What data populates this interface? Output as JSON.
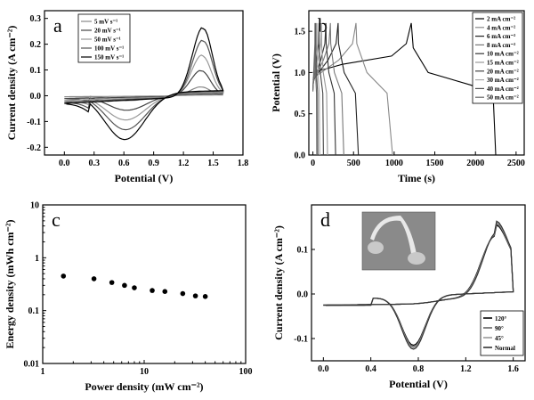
{
  "chart_data": [
    {
      "panel": "a",
      "type": "line",
      "xlabel": "Potential (V)",
      "ylabel": "Current density (A cm⁻²)",
      "xlim": [
        -0.2,
        1.8
      ],
      "ylim": [
        -0.23,
        0.33
      ],
      "xticks": [
        "0.0",
        "0.3",
        "0.6",
        "0.9",
        "1.2",
        "1.5",
        "1.8"
      ],
      "yticks": [
        "-0.2",
        "-0.1",
        "0.0",
        "0.1",
        "0.2",
        "0.3"
      ],
      "legend": [
        "5 mV s⁻¹",
        "20 mV s⁻¹",
        "50 mV s⁻¹",
        "100 mV s⁻¹",
        "150 mV s⁻¹"
      ],
      "series": [
        {
          "name": "5 mV s⁻¹",
          "color": "#888888",
          "anodic_peak": [
            1.38,
            0.035
          ],
          "cathodic_peak": [
            0.65,
            -0.02
          ]
        },
        {
          "name": "20 mV s⁻¹",
          "color": "#444444",
          "anodic_peak": [
            1.38,
            0.1
          ],
          "cathodic_peak": [
            0.63,
            -0.06
          ]
        },
        {
          "name": "50 mV s⁻¹",
          "color": "#999999",
          "anodic_peak": [
            1.39,
            0.16
          ],
          "cathodic_peak": [
            0.62,
            -0.1
          ]
        },
        {
          "name": "100 mV s⁻¹",
          "color": "#555555",
          "anodic_peak": [
            1.4,
            0.22
          ],
          "cathodic_peak": [
            0.62,
            -0.14
          ]
        },
        {
          "name": "150 mV s⁻¹",
          "color": "#000000",
          "anodic_peak": [
            1.4,
            0.27
          ],
          "cathodic_peak": [
            0.61,
            -0.18
          ]
        }
      ]
    },
    {
      "panel": "b",
      "type": "line",
      "xlabel": "Time (s)",
      "ylabel": "Potential (V)",
      "xlim": [
        -50,
        2600
      ],
      "ylim": [
        0,
        1.75
      ],
      "xticks": [
        "0",
        "500",
        "1000",
        "1500",
        "2000",
        "2500"
      ],
      "yticks": [
        "0.0",
        "0.5",
        "1.0",
        "1.5"
      ],
      "legend": [
        "2 mA cm⁻²",
        "4 mA cm⁻²",
        "6 mA cm⁻²",
        "8 mA cm⁻²",
        "10 mA cm⁻²",
        "15 mA cm⁻²",
        "20 mA cm⁻²",
        "30 mA cm⁻²",
        "40 mA cm⁻²",
        "50 mA cm⁻²"
      ],
      "series": [
        {
          "name": "2 mA cm⁻²",
          "color": "#000000",
          "t_charge": 1210,
          "t_end": 2250
        },
        {
          "name": "4 mA cm⁻²",
          "color": "#888888",
          "t_charge": 530,
          "t_end": 980
        },
        {
          "name": "6 mA cm⁻²",
          "color": "#222222",
          "t_charge": 310,
          "t_end": 560
        },
        {
          "name": "8 mA cm⁻²",
          "color": "#777777",
          "t_charge": 215,
          "t_end": 380
        },
        {
          "name": "10 mA cm⁻²",
          "color": "#333333",
          "t_charge": 160,
          "t_end": 280
        },
        {
          "name": "15 mA cm⁻²",
          "color": "#999999",
          "t_charge": 105,
          "t_end": 180
        },
        {
          "name": "20 mA cm⁻²",
          "color": "#444444",
          "t_charge": 75,
          "t_end": 130
        },
        {
          "name": "30 mA cm⁻²",
          "color": "#aaaaaa",
          "t_charge": 50,
          "t_end": 85
        },
        {
          "name": "40 mA cm⁻²",
          "color": "#555555",
          "t_charge": 35,
          "t_end": 62
        },
        {
          "name": "50 mA cm⁻²",
          "color": "#666666",
          "t_charge": 26,
          "t_end": 48
        }
      ]
    },
    {
      "panel": "c",
      "type": "scatter",
      "xlabel": "Power density (mW cm⁻²)",
      "ylabel": "Energy density (mWh cm⁻²)",
      "xscale": "log",
      "yscale": "log",
      "xlim": [
        1,
        100
      ],
      "ylim": [
        0.01,
        10
      ],
      "xticks": [
        "1",
        "10",
        "100"
      ],
      "yticks": [
        "0.01",
        "0.1",
        "1",
        "10"
      ],
      "points": [
        [
          1.6,
          0.45
        ],
        [
          3.2,
          0.4
        ],
        [
          4.8,
          0.34
        ],
        [
          6.4,
          0.3
        ],
        [
          8,
          0.27
        ],
        [
          12,
          0.24
        ],
        [
          16,
          0.23
        ],
        [
          24,
          0.21
        ],
        [
          32,
          0.19
        ],
        [
          40,
          0.185
        ]
      ]
    },
    {
      "panel": "d",
      "type": "line",
      "xlabel": "Potential (V)",
      "ylabel": "Current density (A cm⁻²)",
      "xlim": [
        -0.1,
        1.7
      ],
      "ylim": [
        -0.15,
        0.2
      ],
      "xticks": [
        "0.0",
        "0.4",
        "0.8",
        "1.2",
        "1.6"
      ],
      "yticks": [
        "-0.1",
        "0.0",
        "0.1"
      ],
      "legend": [
        "120°",
        "90°",
        "45°",
        "Normal"
      ],
      "series": [
        {
          "name": "120°",
          "color": "#000000"
        },
        {
          "name": "90°",
          "color": "#666666"
        },
        {
          "name": "45°",
          "color": "#999999"
        },
        {
          "name": "Normal",
          "color": "#333333"
        }
      ]
    }
  ],
  "panel_labels": {
    "a": "a",
    "b": "b",
    "c": "c",
    "d": "d"
  }
}
